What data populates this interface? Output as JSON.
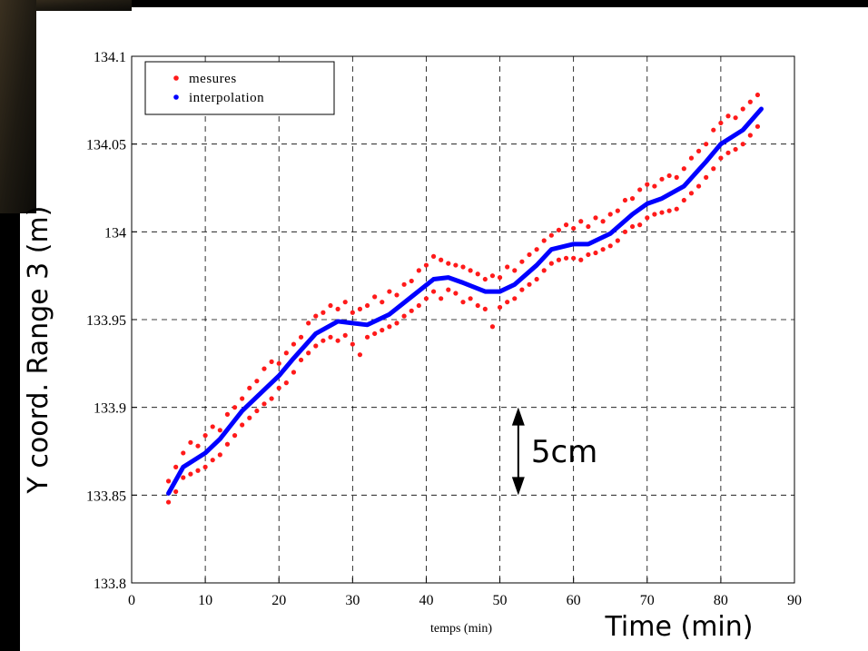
{
  "chart_data": {
    "type": "scatter",
    "xlim": [
      0,
      90
    ],
    "xticks": [
      0,
      10,
      20,
      30,
      40,
      50,
      60,
      70,
      80,
      90
    ],
    "ylim": [
      133.8,
      134.1
    ],
    "yticks": [
      133.8,
      133.85,
      133.9,
      133.95,
      134,
      134.05,
      134.1
    ],
    "grid": true,
    "legend": "upper left",
    "xlabel": "temps (min)",
    "xlabel_overlay": "Time (min)",
    "ylabel_overlay": "Y coord. Range 3 (m)",
    "annotation": {
      "text": "5cm",
      "x": 52.5,
      "y_from": 133.9,
      "y_to": 133.85,
      "color": "#3333cc"
    },
    "series": [
      {
        "name": "mesures",
        "type": "scatter",
        "color": "#ff1a1a",
        "x": [
          5,
          5,
          6,
          6,
          7,
          7,
          8,
          8,
          9,
          9,
          10,
          10,
          11,
          11,
          12,
          12,
          13,
          13,
          14,
          14,
          15,
          15,
          16,
          16,
          17,
          17,
          18,
          18,
          19,
          19,
          20,
          20,
          21,
          21,
          22,
          22,
          23,
          23,
          24,
          24,
          25,
          25,
          26,
          26,
          27,
          27,
          28,
          28,
          29,
          29,
          30,
          30,
          31,
          31,
          32,
          32,
          33,
          33,
          34,
          34,
          35,
          35,
          36,
          36,
          37,
          37,
          38,
          38,
          39,
          39,
          40,
          40,
          41,
          41,
          42,
          42,
          43,
          43,
          44,
          44,
          45,
          45,
          46,
          46,
          47,
          47,
          48,
          48,
          49,
          49,
          50,
          50,
          51,
          51,
          52,
          52,
          53,
          53,
          54,
          54,
          55,
          55,
          56,
          56,
          57,
          57,
          58,
          58,
          59,
          59,
          60,
          60,
          61,
          61,
          62,
          62,
          63,
          63,
          64,
          64,
          65,
          65,
          66,
          66,
          67,
          67,
          68,
          68,
          69,
          69,
          70,
          70,
          71,
          71,
          72,
          72,
          73,
          73,
          74,
          74,
          75,
          75,
          76,
          76,
          77,
          77,
          78,
          78,
          79,
          79,
          80,
          80,
          81,
          81,
          82,
          82,
          83,
          83,
          84,
          84,
          85,
          85
        ],
        "values": [
          133.858,
          133.846,
          133.866,
          133.852,
          133.874,
          133.86,
          133.88,
          133.862,
          133.878,
          133.864,
          133.884,
          133.866,
          133.889,
          133.87,
          133.887,
          133.873,
          133.896,
          133.879,
          133.9,
          133.884,
          133.905,
          133.89,
          133.911,
          133.894,
          133.915,
          133.898,
          133.922,
          133.902,
          133.926,
          133.905,
          133.925,
          133.911,
          133.931,
          133.914,
          133.936,
          133.92,
          133.94,
          133.927,
          133.948,
          133.931,
          133.952,
          133.935,
          133.954,
          133.938,
          133.958,
          133.94,
          133.956,
          133.938,
          133.96,
          133.941,
          133.954,
          133.936,
          133.956,
          133.93,
          133.958,
          133.94,
          133.963,
          133.942,
          133.96,
          133.944,
          133.966,
          133.946,
          133.964,
          133.948,
          133.97,
          133.952,
          133.972,
          133.955,
          133.978,
          133.958,
          133.981,
          133.962,
          133.986,
          133.966,
          133.984,
          133.962,
          133.982,
          133.967,
          133.981,
          133.965,
          133.98,
          133.96,
          133.978,
          133.962,
          133.976,
          133.958,
          133.973,
          133.956,
          133.975,
          133.946,
          133.974,
          133.957,
          133.98,
          133.96,
          133.978,
          133.962,
          133.983,
          133.967,
          133.987,
          133.97,
          133.99,
          133.973,
          133.995,
          133.978,
          133.998,
          133.982,
          134.001,
          133.984,
          134.004,
          133.985,
          134.002,
          133.985,
          134.006,
          133.984,
          134.003,
          133.987,
          134.008,
          133.988,
          134.006,
          133.99,
          134.01,
          133.992,
          134.012,
          133.995,
          134.018,
          134,
          134.019,
          134.003,
          134.024,
          134.004,
          134.027,
          134.008,
          134.026,
          134.01,
          134.03,
          134.011,
          134.032,
          134.012,
          134.031,
          134.013,
          134.036,
          134.018,
          134.042,
          134.022,
          134.046,
          134.026,
          134.05,
          134.031,
          134.058,
          134.036,
          134.062,
          134.042,
          134.066,
          134.045,
          134.065,
          134.047,
          134.07,
          134.05,
          134.074,
          134.055,
          134.078,
          134.06
        ]
      },
      {
        "name": "interpolation",
        "type": "line",
        "color": "#0000ff",
        "x": [
          5,
          7,
          10,
          12,
          15,
          18,
          20,
          22,
          25,
          28,
          30,
          32,
          35,
          38,
          41,
          43,
          45,
          48,
          50,
          52,
          55,
          57,
          60,
          62,
          65,
          68,
          70,
          72,
          75,
          78,
          80,
          83,
          85.5
        ],
        "values": [
          133.851,
          133.866,
          133.874,
          133.882,
          133.898,
          133.91,
          133.918,
          133.928,
          133.942,
          133.949,
          133.948,
          133.947,
          133.953,
          133.963,
          133.973,
          133.974,
          133.971,
          133.966,
          133.966,
          133.97,
          133.981,
          133.99,
          133.993,
          133.993,
          133.999,
          134.01,
          134.016,
          134.019,
          134.026,
          134.04,
          134.05,
          134.058,
          134.07
        ]
      }
    ]
  }
}
